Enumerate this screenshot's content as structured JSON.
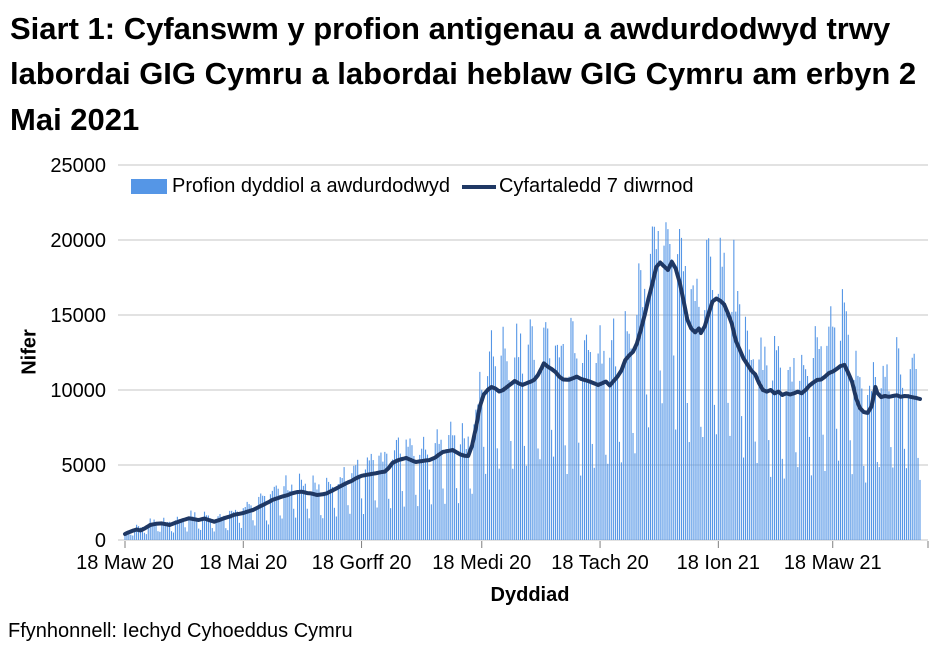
{
  "title": "Siart 1: Cyfanswm y profion antigenau a awdurdodwyd trwy labordai GIG Cymru a labordai heblaw GIG Cymru am erbyn 2 Mai 2021",
  "source": "Ffynhonnell: Iechyd Cyhoeddus Cymru",
  "chart_data": {
    "type": "bar+line",
    "title": "Siart 1: Cyfanswm y profion antigenau a awdurdodwyd trwy labordai GIG Cymru a labordai heblaw GIG Cymru am erbyn 2 Mai 2021",
    "xlabel": "Dyddiad",
    "ylabel": "Nifer",
    "ylim": [
      0,
      25000
    ],
    "yticks": [
      0,
      5000,
      10000,
      15000,
      20000,
      25000
    ],
    "grid": "horizontal",
    "grid_color": "#C6C6C6",
    "tick_color": "#7F7F7F",
    "legend_position": "top-left-inside",
    "n_days": 411,
    "xticks": [
      {
        "day": 0,
        "label": "18 Maw 20"
      },
      {
        "day": 61,
        "label": "18 Mai 20"
      },
      {
        "day": 122,
        "label": "18 Gorff 20"
      },
      {
        "day": 184,
        "label": "18 Medi 20"
      },
      {
        "day": 245,
        "label": "18 Tach 20"
      },
      {
        "day": 306,
        "label": "18 Ion 21"
      },
      {
        "day": 365,
        "label": "18 Maw 21"
      }
    ],
    "legend": [
      {
        "label": "Profion dyddiol a awdurdodwyd",
        "type": "bar",
        "color": "#5596E6"
      },
      {
        "label": "Cyfartaledd 7 diwrnod",
        "type": "line",
        "color": "#1F3864"
      }
    ],
    "series": {
      "line_name": "Cyfartaledd 7 diwrnod",
      "line_keypoints": [
        [
          0,
          400
        ],
        [
          2,
          520
        ],
        [
          4,
          620
        ],
        [
          6,
          700
        ],
        [
          8,
          640
        ],
        [
          10,
          760
        ],
        [
          13,
          1000
        ],
        [
          16,
          1080
        ],
        [
          19,
          1110
        ],
        [
          23,
          1000
        ],
        [
          26,
          1150
        ],
        [
          30,
          1330
        ],
        [
          33,
          1450
        ],
        [
          36,
          1380
        ],
        [
          38,
          1330
        ],
        [
          41,
          1430
        ],
        [
          44,
          1300
        ],
        [
          46,
          1220
        ],
        [
          49,
          1350
        ],
        [
          51,
          1450
        ],
        [
          54,
          1560
        ],
        [
          56,
          1670
        ],
        [
          59,
          1750
        ],
        [
          61,
          1800
        ],
        [
          64,
          1930
        ],
        [
          66,
          2000
        ],
        [
          69,
          2200
        ],
        [
          71,
          2330
        ],
        [
          74,
          2520
        ],
        [
          76,
          2670
        ],
        [
          79,
          2800
        ],
        [
          81,
          2890
        ],
        [
          84,
          3000
        ],
        [
          86,
          3110
        ],
        [
          89,
          3200
        ],
        [
          91,
          3220
        ],
        [
          94,
          3130
        ],
        [
          96,
          3110
        ],
        [
          99,
          3000
        ],
        [
          102,
          3050
        ],
        [
          104,
          3110
        ],
        [
          107,
          3300
        ],
        [
          109,
          3440
        ],
        [
          112,
          3650
        ],
        [
          114,
          3780
        ],
        [
          117,
          3950
        ],
        [
          119,
          4110
        ],
        [
          122,
          4280
        ],
        [
          124,
          4330
        ],
        [
          127,
          4400
        ],
        [
          129,
          4440
        ],
        [
          132,
          4520
        ],
        [
          134,
          4560
        ],
        [
          136,
          4800
        ],
        [
          138,
          5150
        ],
        [
          141,
          5330
        ],
        [
          143,
          5400
        ],
        [
          145,
          5470
        ],
        [
          148,
          5300
        ],
        [
          150,
          5200
        ],
        [
          153,
          5260
        ],
        [
          155,
          5300
        ],
        [
          157,
          5330
        ],
        [
          160,
          5500
        ],
        [
          162,
          5700
        ],
        [
          164,
          5870
        ],
        [
          167,
          5950
        ],
        [
          169,
          6000
        ],
        [
          171,
          5850
        ],
        [
          173,
          5700
        ],
        [
          175,
          5620
        ],
        [
          177,
          5600
        ],
        [
          179,
          6300
        ],
        [
          181,
          7500
        ],
        [
          183,
          8900
        ],
        [
          185,
          9700
        ],
        [
          187,
          10000
        ],
        [
          189,
          10200
        ],
        [
          191,
          10100
        ],
        [
          193,
          9900
        ],
        [
          195,
          10000
        ],
        [
          197,
          10200
        ],
        [
          199,
          10400
        ],
        [
          201,
          10600
        ],
        [
          203,
          10450
        ],
        [
          205,
          10330
        ],
        [
          207,
          10450
        ],
        [
          209,
          10550
        ],
        [
          211,
          10670
        ],
        [
          213,
          11000
        ],
        [
          215,
          11500
        ],
        [
          216,
          11780
        ],
        [
          218,
          11560
        ],
        [
          220,
          11400
        ],
        [
          222,
          11200
        ],
        [
          224,
          10890
        ],
        [
          226,
          10700
        ],
        [
          229,
          10680
        ],
        [
          231,
          10780
        ],
        [
          233,
          10890
        ],
        [
          235,
          10750
        ],
        [
          237,
          10670
        ],
        [
          240,
          10550
        ],
        [
          242,
          10440
        ],
        [
          244,
          10330
        ],
        [
          246,
          10450
        ],
        [
          248,
          10560
        ],
        [
          250,
          10300
        ],
        [
          252,
          10600
        ],
        [
          254,
          10890
        ],
        [
          256,
          11300
        ],
        [
          258,
          12000
        ],
        [
          260,
          12300
        ],
        [
          262,
          12550
        ],
        [
          264,
          13100
        ],
        [
          266,
          14000
        ],
        [
          268,
          15000
        ],
        [
          270,
          16100
        ],
        [
          272,
          17100
        ],
        [
          274,
          18200
        ],
        [
          276,
          18500
        ],
        [
          278,
          18250
        ],
        [
          280,
          18000
        ],
        [
          282,
          18550
        ],
        [
          284,
          18100
        ],
        [
          286,
          17200
        ],
        [
          288,
          16000
        ],
        [
          290,
          14700
        ],
        [
          292,
          14100
        ],
        [
          294,
          13850
        ],
        [
          296,
          14100
        ],
        [
          297,
          13800
        ],
        [
          299,
          14250
        ],
        [
          301,
          15100
        ],
        [
          303,
          15900
        ],
        [
          305,
          16100
        ],
        [
          307,
          15950
        ],
        [
          309,
          15700
        ],
        [
          311,
          15100
        ],
        [
          313,
          14400
        ],
        [
          315,
          13300
        ],
        [
          317,
          12700
        ],
        [
          319,
          12100
        ],
        [
          321,
          11700
        ],
        [
          323,
          11300
        ],
        [
          325,
          11050
        ],
        [
          327,
          10450
        ],
        [
          329,
          10000
        ],
        [
          331,
          9890
        ],
        [
          333,
          10000
        ],
        [
          335,
          9780
        ],
        [
          337,
          9890
        ],
        [
          339,
          9670
        ],
        [
          341,
          9780
        ],
        [
          343,
          9700
        ],
        [
          345,
          9780
        ],
        [
          347,
          9890
        ],
        [
          349,
          9780
        ],
        [
          351,
          10000
        ],
        [
          353,
          10300
        ],
        [
          355,
          10500
        ],
        [
          357,
          10670
        ],
        [
          359,
          10700
        ],
        [
          361,
          10890
        ],
        [
          363,
          11130
        ],
        [
          365,
          11230
        ],
        [
          367,
          11400
        ],
        [
          369,
          11600
        ],
        [
          371,
          11670
        ],
        [
          373,
          11150
        ],
        [
          375,
          10530
        ],
        [
          377,
          9470
        ],
        [
          379,
          8800
        ],
        [
          381,
          8530
        ],
        [
          383,
          8470
        ],
        [
          385,
          8900
        ],
        [
          387,
          10200
        ],
        [
          388,
          9800
        ],
        [
          390,
          9530
        ],
        [
          392,
          9600
        ],
        [
          394,
          9550
        ],
        [
          396,
          9600
        ],
        [
          398,
          9650
        ],
        [
          400,
          9550
        ],
        [
          402,
          9600
        ],
        [
          404,
          9580
        ],
        [
          406,
          9520
        ],
        [
          408,
          9470
        ],
        [
          410,
          9400
        ]
      ],
      "bars_name": "Profion dyddiol a awdurdodwyd",
      "bar_model": {
        "weekday_multipliers": {
          "Mon": 1.12,
          "Tue": 1.3,
          "Wed": 1.25,
          "Thu": 1.2,
          "Fri": 1.12,
          "Sat": 0.6,
          "Sun": 0.45
        },
        "first_day_weekday": "Wed",
        "jitter": 0.12,
        "soft_cap": 20000,
        "soft_cap_slope": 0.2,
        "max_bar_observed": 21200,
        "min_bar": 60
      }
    }
  }
}
